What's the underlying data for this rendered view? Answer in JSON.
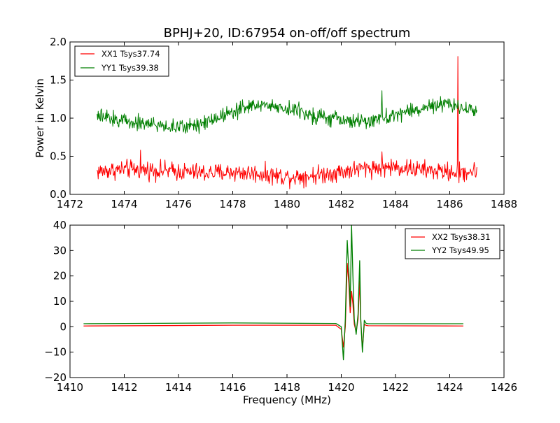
{
  "colors": {
    "xx": "#ff0000",
    "yy": "#007f00",
    "axes": "#000000",
    "background": "#ffffff"
  },
  "chart_data": [
    {
      "type": "line",
      "title": "BPHJ+20, ID:67954 on-off/off spectrum",
      "xlabel": "",
      "ylabel": "Power in Kelvin",
      "xlim": [
        1472,
        1488
      ],
      "ylim": [
        0.0,
        2.0
      ],
      "xticks": [
        "1472",
        "1474",
        "1476",
        "1478",
        "1480",
        "1482",
        "1484",
        "1486",
        "1488"
      ],
      "yticks": [
        "0.0",
        "0.5",
        "1.0",
        "1.5",
        "2.0"
      ],
      "legend": {
        "placement": "top-left",
        "entries": [
          "XX1 Tsys37.74",
          "YY1 Tsys39.38"
        ]
      },
      "grid": false,
      "x_range": [
        1473.0,
        1487.0
      ],
      "series": [
        {
          "name": "XX1 Tsys37.74",
          "color": "#ff0000",
          "noise": 0.06,
          "x": [
            1473,
            1474,
            1475,
            1476,
            1477,
            1478,
            1479,
            1480,
            1481,
            1482,
            1483,
            1484,
            1485,
            1486,
            1487
          ],
          "y": [
            0.3,
            0.33,
            0.32,
            0.3,
            0.28,
            0.29,
            0.27,
            0.23,
            0.25,
            0.3,
            0.35,
            0.36,
            0.32,
            0.29,
            0.3
          ],
          "spikes": [
            {
              "x": 1474.6,
              "y": 0.58
            },
            {
              "x": 1483.5,
              "y": 0.56
            },
            {
              "x": 1486.3,
              "y": 1.81
            },
            {
              "x": 1486.35,
              "y": 0.15
            }
          ]
        },
        {
          "name": "YY1 Tsys39.38",
          "color": "#007f00",
          "noise": 0.05,
          "x": [
            1473,
            1474,
            1475,
            1476,
            1477,
            1478,
            1479,
            1480,
            1481,
            1482,
            1483,
            1484,
            1485,
            1486,
            1487
          ],
          "y": [
            1.02,
            0.97,
            0.92,
            0.87,
            0.95,
            1.1,
            1.18,
            1.13,
            1.04,
            0.97,
            0.95,
            1.05,
            1.13,
            1.18,
            1.1
          ],
          "spikes": [
            {
              "x": 1483.5,
              "y": 1.36
            }
          ]
        }
      ]
    },
    {
      "type": "line",
      "title": "",
      "xlabel": "Frequency (MHz)",
      "ylabel": "",
      "xlim": [
        1410,
        1426
      ],
      "ylim": [
        -20,
        40
      ],
      "xticks": [
        "1410",
        "1412",
        "1414",
        "1416",
        "1418",
        "1420",
        "1422",
        "1424",
        "1426"
      ],
      "yticks": [
        "−20",
        "−10",
        "0",
        "10",
        "20",
        "30",
        "40"
      ],
      "legend": {
        "placement": "top-right",
        "entries": [
          "XX2 Tsys38.31",
          "YY2 Tsys49.95"
        ]
      },
      "grid": false,
      "series": [
        {
          "name": "XX2 Tsys38.31",
          "color": "#ff0000",
          "x": [
            1410.5,
            1416.0,
            1419.8,
            1420.0,
            1420.08,
            1420.15,
            1420.22,
            1420.28,
            1420.33,
            1420.38,
            1420.43,
            1420.48,
            1420.55,
            1420.62,
            1420.68,
            1420.72,
            1420.78,
            1420.85,
            1420.92,
            1421.0,
            1424.5
          ],
          "y": [
            0.3,
            0.6,
            0.6,
            -1.0,
            -8.0,
            0.0,
            25.0,
            17.0,
            5.5,
            14.0,
            9.0,
            1.0,
            -2.0,
            3.0,
            18.0,
            2.0,
            -8.5,
            1.0,
            0.5,
            0.4,
            0.3
          ]
        },
        {
          "name": "YY2 Tsys49.95",
          "color": "#007f00",
          "x": [
            1410.5,
            1416.0,
            1419.8,
            1420.0,
            1420.08,
            1420.15,
            1420.22,
            1420.28,
            1420.33,
            1420.38,
            1420.43,
            1420.48,
            1420.55,
            1420.62,
            1420.68,
            1420.72,
            1420.78,
            1420.85,
            1420.92,
            1421.0,
            1424.5
          ],
          "y": [
            1.2,
            1.5,
            1.3,
            0.0,
            -13.0,
            3.0,
            34.0,
            22.0,
            8.0,
            40.0,
            20.0,
            3.0,
            -3.0,
            5.0,
            26.0,
            3.0,
            -10.0,
            2.5,
            1.3,
            1.2,
            1.2
          ]
        }
      ]
    }
  ]
}
